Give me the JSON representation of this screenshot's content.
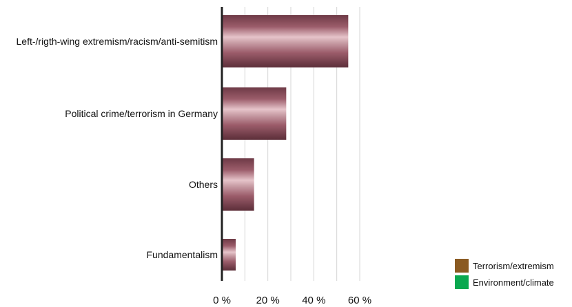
{
  "chart_data": {
    "type": "bar",
    "orientation": "horizontal",
    "categories": [
      "Left-/rigth-wing extremism/racism/anti-semitism",
      "Political crime/terrorism in Germany",
      "Others",
      "Fundamentalism"
    ],
    "values": [
      55,
      28,
      14,
      6
    ],
    "xlim": [
      0,
      60
    ],
    "xticks": [
      0,
      20,
      40,
      60
    ],
    "xtick_labels": [
      "0 %",
      "20 %",
      "40 %",
      "60 %"
    ],
    "grid": true,
    "bar_color": "#9b5c6a",
    "legend": {
      "placement": "bottom-right",
      "entries": [
        {
          "label": "Terrorism/extremism",
          "color": "#8a5a22"
        },
        {
          "label": "Environment/climate",
          "color": "#0aa84f"
        }
      ]
    }
  }
}
